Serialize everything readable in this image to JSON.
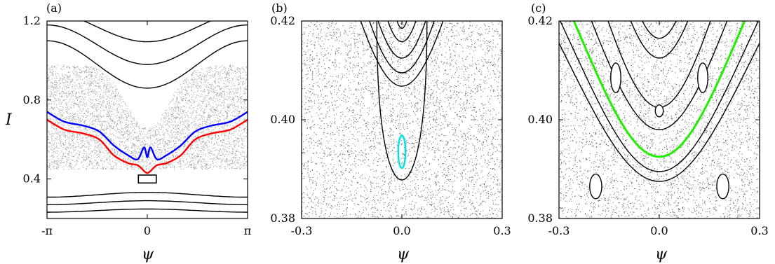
{
  "chart_data": [
    {
      "type": "scatter",
      "panel_label": "(a)",
      "xlabel": "ψ",
      "ylabel": "I",
      "xlim": [
        -3.14159,
        3.14159
      ],
      "ylim": [
        0.2,
        1.2
      ],
      "x_ticks": [
        {
          "value": -3.14159,
          "label": "-π"
        },
        {
          "value": 0,
          "label": "0"
        },
        {
          "value": 3.14159,
          "label": "π"
        }
      ],
      "y_ticks": [
        {
          "value": 0.4,
          "label": "0.4"
        },
        {
          "value": 0.8,
          "label": "0.8"
        },
        {
          "value": 1.2,
          "label": "1.2"
        }
      ],
      "chaotic_band": [
        0.45,
        1.0
      ],
      "black_curves": [
        {
          "base": 1.17,
          "amp": 0.075
        },
        {
          "base": 1.08,
          "amp": 0.1
        },
        {
          "base": 0.98,
          "amp": 0.12
        },
        {
          "base": 0.32,
          "amp": 0.012
        },
        {
          "base": 0.28,
          "amp": 0.01
        },
        {
          "base": 0.24,
          "amp": 0.008
        }
      ],
      "series": [
        {
          "color": "#0000ff",
          "points": [
            [
              -3.14159,
              0.74
            ],
            [
              -2.6,
              0.69
            ],
            [
              -2.0,
              0.67
            ],
            [
              -1.5,
              0.64
            ],
            [
              -1.05,
              0.57
            ],
            [
              -0.6,
              0.52
            ],
            [
              -0.3,
              0.5
            ],
            [
              -0.1,
              0.56
            ],
            [
              0,
              0.51
            ],
            [
              0.1,
              0.56
            ],
            [
              0.3,
              0.5
            ],
            [
              0.6,
              0.52
            ],
            [
              1.05,
              0.57
            ],
            [
              1.5,
              0.64
            ],
            [
              2.0,
              0.67
            ],
            [
              2.6,
              0.69
            ],
            [
              3.14159,
              0.74
            ]
          ]
        },
        {
          "color": "#ff0000",
          "points": [
            [
              -3.14159,
              0.7
            ],
            [
              -2.6,
              0.65
            ],
            [
              -2.0,
              0.63
            ],
            [
              -1.5,
              0.6
            ],
            [
              -1.05,
              0.52
            ],
            [
              -0.6,
              0.48
            ],
            [
              -0.3,
              0.47
            ],
            [
              -0.1,
              0.44
            ],
            [
              0,
              0.43
            ],
            [
              0.1,
              0.44
            ],
            [
              0.3,
              0.47
            ],
            [
              0.6,
              0.48
            ],
            [
              1.05,
              0.52
            ],
            [
              1.5,
              0.6
            ],
            [
              2.0,
              0.63
            ],
            [
              2.6,
              0.65
            ],
            [
              3.14159,
              0.7
            ]
          ]
        }
      ],
      "inset_box": {
        "x": [
          -0.28,
          0.28
        ],
        "y": [
          0.38,
          0.42
        ]
      }
    },
    {
      "type": "scatter",
      "panel_label": "(b)",
      "xlabel": "ψ",
      "ylabel": "",
      "xlim": [
        -0.3,
        0.3
      ],
      "ylim": [
        0.38,
        0.42
      ],
      "x_ticks": [
        {
          "value": -0.3,
          "label": "-0.3"
        },
        {
          "value": 0,
          "label": "0.0"
        },
        {
          "value": 0.3,
          "label": "0.3"
        }
      ],
      "y_ticks": [
        {
          "value": 0.38,
          "label": "0.38"
        },
        {
          "value": 0.4,
          "label": "0.40"
        },
        {
          "value": 0.42,
          "label": "0.42"
        }
      ],
      "black_curves": [
        {
          "bottom": 0.4185,
          "half_width": 0.07
        },
        {
          "bottom": 0.4158,
          "half_width": 0.12
        },
        {
          "bottom": 0.4125,
          "half_width": 0.15
        },
        {
          "bottom": 0.4095,
          "half_width": 0.17
        },
        {
          "bottom": 0.4068,
          "half_width": 0.19
        }
      ],
      "u_curve": {
        "bottom": 0.3878,
        "half_width": 0.075,
        "top": 0.42
      },
      "series": [
        {
          "color": "#00e5e5",
          "shape": "oval",
          "center": [
            0,
            0.3935
          ],
          "rx": 0.011,
          "ry": 0.0033
        }
      ]
    },
    {
      "type": "scatter",
      "panel_label": "(c)",
      "xlabel": "ψ",
      "ylabel": "",
      "xlim": [
        -0.3,
        0.3
      ],
      "ylim": [
        0.38,
        0.42
      ],
      "x_ticks": [
        {
          "value": -0.3,
          "label": "-0.3"
        },
        {
          "value": 0,
          "label": "0.0"
        },
        {
          "value": 0.3,
          "label": "0.3"
        }
      ],
      "y_ticks": [
        {
          "value": 0.38,
          "label": "0.38"
        },
        {
          "value": 0.4,
          "label": "0.40"
        },
        {
          "value": 0.42,
          "label": "0.42"
        }
      ],
      "black_curves": [
        {
          "bottom": 0.4165,
          "half_width": 0.16
        },
        {
          "bottom": 0.4125,
          "half_width": 0.18
        },
        {
          "bottom": 0.4025,
          "half_width": 0.2
        },
        {
          "bottom": 0.398,
          "half_width": 0.23
        },
        {
          "bottom": 0.3895,
          "half_width": 0.27
        },
        {
          "bottom": 0.3875,
          "half_width": 0.29
        }
      ],
      "islands": [
        {
          "center": [
            -0.13,
            0.4085
          ],
          "rx": 0.015,
          "ry": 0.003
        },
        {
          "center": [
            0.13,
            0.4085
          ],
          "rx": 0.015,
          "ry": 0.003
        },
        {
          "center": [
            -0.19,
            0.3865
          ],
          "rx": 0.018,
          "ry": 0.0025
        },
        {
          "center": [
            0.19,
            0.3865
          ],
          "rx": 0.018,
          "ry": 0.0025
        },
        {
          "center": [
            0,
            0.4018
          ],
          "rx": 0.012,
          "ry": 0.0012
        }
      ],
      "series": [
        {
          "color": "#22ee00",
          "bottom": 0.3925,
          "half_width": 0.25
        }
      ]
    }
  ]
}
